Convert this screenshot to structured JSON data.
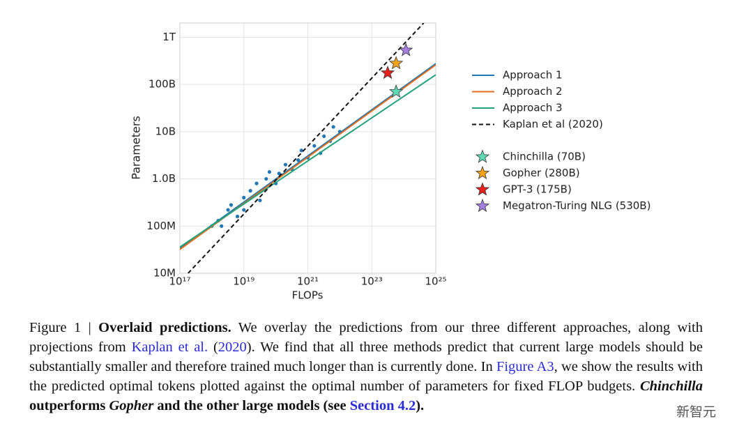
{
  "chart_data": {
    "type": "line",
    "xlabel": "FLOPs",
    "ylabel": "Parameters",
    "xscale": "log",
    "yscale": "log",
    "grid": true,
    "xlim": [
      1e+17,
      1e+25
    ],
    "ylim": [
      10000000.0,
      2000000000000.0
    ],
    "xticks": [
      {
        "value": 1e+17,
        "label": "10¹⁷"
      },
      {
        "value": 1e+19,
        "label": "10¹⁹"
      },
      {
        "value": 1e+21,
        "label": "10²¹"
      },
      {
        "value": 1e+23,
        "label": "10²³"
      },
      {
        "value": 1e+25,
        "label": "10²⁵"
      }
    ],
    "yticks": [
      {
        "value": 10000000.0,
        "label": "10M"
      },
      {
        "value": 100000000.0,
        "label": "100M"
      },
      {
        "value": 1000000000.0,
        "label": "1.0B"
      },
      {
        "value": 10000000000.0,
        "label": "10B"
      },
      {
        "value": 100000000000.0,
        "label": "100B"
      },
      {
        "value": 1000000000000.0,
        "label": "1T"
      }
    ],
    "series": [
      {
        "name": "Approach 1",
        "color": "#1f77b4",
        "dash": "solid",
        "x": [
          1e+17,
          1e+25
        ],
        "values": [
          34000000.0,
          275000000000.0
        ]
      },
      {
        "name": "Approach 2",
        "color": "#e07020",
        "dash": "solid",
        "x": [
          1e+17,
          1e+25
        ],
        "values": [
          32000000.0,
          260000000000.0
        ]
      },
      {
        "name": "Approach 3",
        "color": "#20a37a",
        "dash": "solid",
        "x": [
          1e+17,
          1e+25
        ],
        "values": [
          36000000.0,
          160000000000.0
        ]
      },
      {
        "name": "Kaplan et al (2020)",
        "color": "#111111",
        "dash": "dashed",
        "x": [
          1.8e+17,
          4.2e+24
        ],
        "values": [
          10000000.0,
          2000000000000.0
        ]
      }
    ],
    "points": {
      "color": "#1f77b4",
      "x": [
        1e+18,
        1.58e+18,
        2e+18,
        3.2e+18,
        4e+18,
        6.3e+18,
        1e+19,
        1e+19,
        1.6e+19,
        2.5e+19,
        3.2e+19,
        5e+19,
        6.3e+19,
        1e+20,
        1.26e+20,
        2e+20,
        3.2e+20,
        5e+20,
        6.3e+20,
        1e+21,
        1.6e+21,
        2.5e+21,
        3.2e+21,
        5e+21,
        6.3e+21,
        1e+22
      ],
      "y": [
        100000000.0,
        130000000.0,
        100000000.0,
        220000000.0,
        280000000.0,
        160000000.0,
        400000000.0,
        220000000.0,
        560000000.0,
        800000000.0,
        350000000.0,
        1000000000.0,
        1400000000.0,
        800000000.0,
        1300000000.0,
        2000000000.0,
        1600000000.0,
        2500000000.0,
        4000000000.0,
        2800000000.0,
        5000000000.0,
        3500000000.0,
        8000000000.0,
        6300000000.0,
        12600000000.0,
        10000000000.0
      ]
    },
    "markers": [
      {
        "name": "Chinchilla (70B)",
        "color": "#5fd9b5",
        "x": 5.76e+23,
        "y": 70000000000.0
      },
      {
        "name": "Gopher (280B)",
        "color": "#f5a31a",
        "x": 5.76e+23,
        "y": 280000000000.0
      },
      {
        "name": "GPT-3 (175B)",
        "color": "#e8201c",
        "x": 3.14e+23,
        "y": 175000000000.0
      },
      {
        "name": "Megatron-Turing NLG (530B)",
        "color": "#a57ee0",
        "x": 1.17e+24,
        "y": 530000000000.0
      }
    ]
  },
  "caption": {
    "parts": [
      {
        "text": "Figure 1 | ",
        "style": "plain"
      },
      {
        "text": "Overlaid predictions.",
        "style": "bold"
      },
      {
        "text": " We overlay the predictions from our three different approaches, along with projections from ",
        "style": "plain"
      },
      {
        "text": "Kaplan et al.",
        "style": "link"
      },
      {
        "text": " (",
        "style": "plain"
      },
      {
        "text": "2020",
        "style": "link"
      },
      {
        "text": "). We find that all three methods predict that current large models should be substantially smaller and therefore trained much longer than is currently done. In ",
        "style": "plain"
      },
      {
        "text": "Figure A3",
        "style": "link"
      },
      {
        "text": ", we show the results with the predicted optimal tokens plotted against the optimal number of parameters for fixed FLOP budgets. ",
        "style": "plain"
      },
      {
        "text": "Chinchilla",
        "style": "bolditalic"
      },
      {
        "text": " outperforms ",
        "style": "bold"
      },
      {
        "text": "Gopher",
        "style": "bolditalic"
      },
      {
        "text": " and the other large models (see ",
        "style": "bold"
      },
      {
        "text": "Section 4.2",
        "style": "boldlink"
      },
      {
        "text": ").",
        "style": "bold"
      }
    ]
  },
  "watermark": "新智元"
}
